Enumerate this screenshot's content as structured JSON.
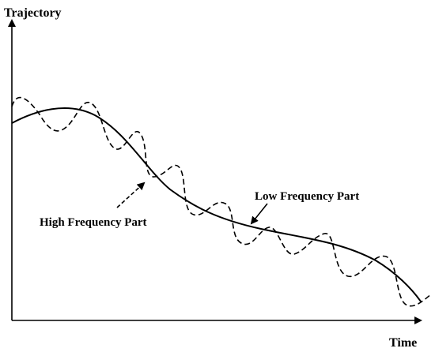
{
  "labels": {
    "y_axis": "Trajectory",
    "x_axis": "Time",
    "low_frequency": "Low Frequency Part",
    "high_frequency": "High Frequency Part"
  },
  "colors": {
    "stroke": "#000000",
    "background": "#ffffff"
  }
}
